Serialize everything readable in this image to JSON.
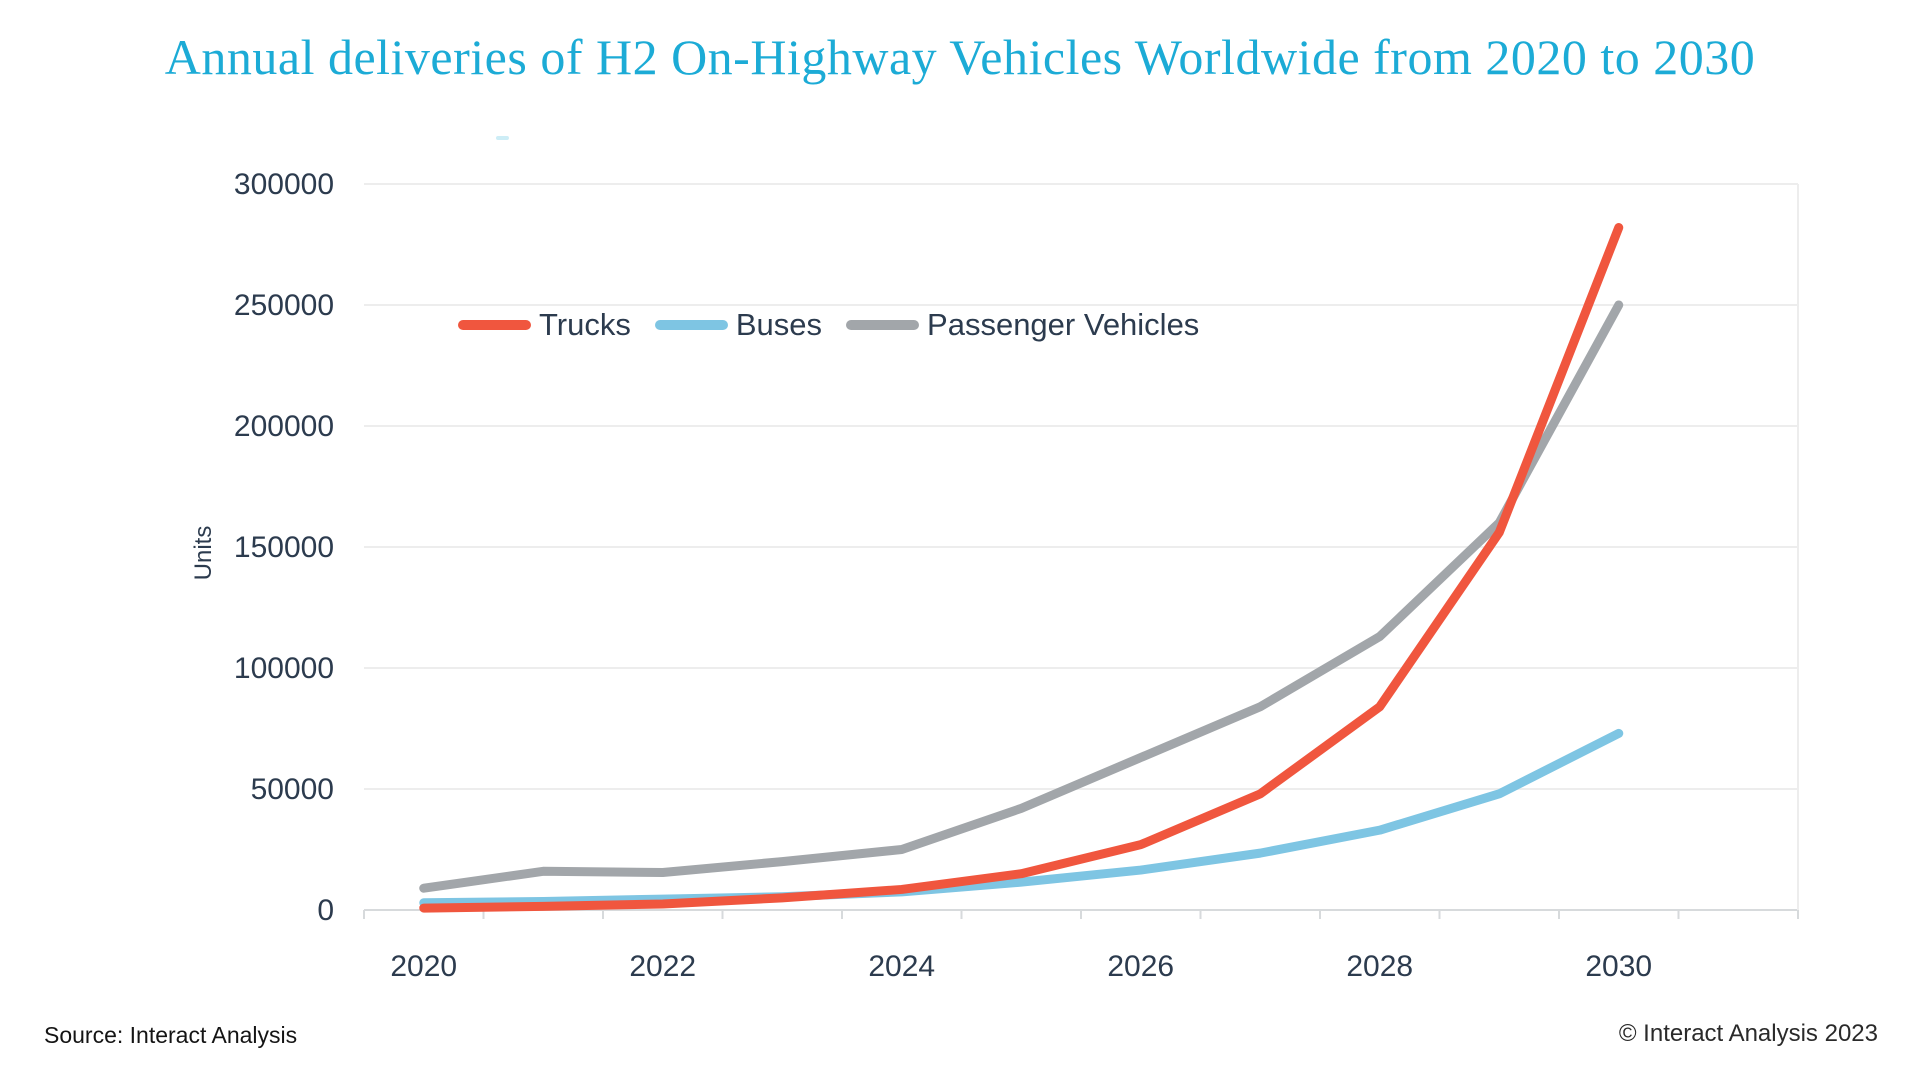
{
  "footer": {
    "source": "Source: Interact Analysis",
    "copyright": "© Interact Analysis 2023"
  },
  "colors": {
    "background": "#FFFFFF",
    "title": "#1CABD6",
    "axis_text": "#2C3B4E",
    "gridline": "#EDEDED",
    "axis_line": "#D7DADC",
    "trucks": "#F0563E",
    "buses": "#7EC5E3",
    "passenger_vehicles": "#A2A6AA",
    "footer_text": "#141414"
  },
  "chart_data": {
    "type": "line",
    "title": "Annual deliveries of H2 On-Highway Vehicles Worldwide from 2020 to 2030",
    "xlabel": "",
    "ylabel": "Units",
    "x": [
      2020,
      2021,
      2022,
      2023,
      2024,
      2025,
      2026,
      2027,
      2028,
      2029,
      2030
    ],
    "x_tick_labels": [
      "2020",
      "2022",
      "2024",
      "2026",
      "2028",
      "2030"
    ],
    "y_ticks": [
      0,
      50000,
      100000,
      150000,
      200000,
      250000,
      300000
    ],
    "ylim": [
      0,
      300000
    ],
    "grid": "horizontal",
    "legend_position": "top-left-inside",
    "series": [
      {
        "name": "Trucks",
        "color": "#F0563E",
        "values": [
          800,
          1500,
          2500,
          5000,
          8500,
          15000,
          27000,
          48000,
          84000,
          156000,
          282000
        ]
      },
      {
        "name": "Buses",
        "color": "#7EC5E3",
        "values": [
          3000,
          3500,
          4500,
          5500,
          7500,
          11500,
          16500,
          23500,
          33000,
          48000,
          73000
        ]
      },
      {
        "name": "Passenger Vehicles",
        "color": "#A2A6AA",
        "values": [
          9000,
          16000,
          15500,
          20000,
          25000,
          42000,
          63000,
          84000,
          113000,
          160000,
          250000
        ]
      }
    ]
  }
}
